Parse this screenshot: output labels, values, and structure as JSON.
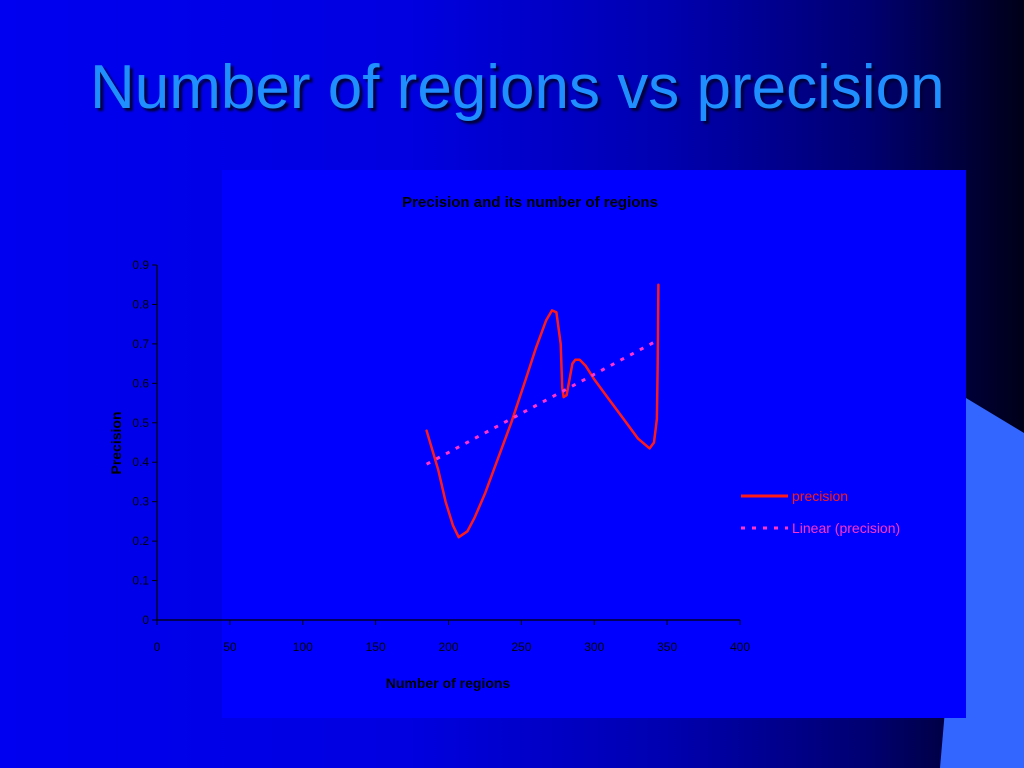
{
  "slide": {
    "title": "Number of regions vs precision"
  },
  "colors": {
    "background_left": "#0000f0",
    "background_right": "#000018",
    "title_text": "#1f8fff",
    "chart_area": "#0000ff",
    "accent_shape": "#3366ff",
    "series_line": "#ff1a1a",
    "trendline": "#ff33cc",
    "axis": "#000000"
  },
  "chart_data": {
    "type": "line",
    "title": "Precision and its number of regions",
    "xlabel": "Number of regions",
    "ylabel": "Precision",
    "xlim": [
      0,
      400
    ],
    "ylim": [
      0,
      0.9
    ],
    "x_ticks": [
      "0",
      "50",
      "100",
      "150",
      "200",
      "250",
      "300",
      "350",
      "400"
    ],
    "y_ticks": [
      "0",
      "0.1",
      "0.2",
      "0.3",
      "0.4",
      "0.5",
      "0.6",
      "0.7",
      "0.8",
      "0.9"
    ],
    "grid": false,
    "legend_position": "right",
    "series": [
      {
        "name": "precision",
        "style": "solid",
        "color": "#ff1a1a",
        "x": [
          185,
          193,
          198,
          203,
          207,
          213,
          218,
          225,
          233,
          243,
          253,
          260,
          267,
          271,
          274,
          277,
          278,
          279,
          281,
          283,
          285,
          287,
          290,
          294,
          300,
          310,
          320,
          330,
          338,
          341,
          343,
          343.5,
          344
        ],
        "y": [
          0.48,
          0.38,
          0.3,
          0.24,
          0.21,
          0.225,
          0.26,
          0.32,
          0.4,
          0.5,
          0.61,
          0.69,
          0.76,
          0.785,
          0.78,
          0.7,
          0.59,
          0.565,
          0.57,
          0.61,
          0.65,
          0.66,
          0.66,
          0.645,
          0.61,
          0.56,
          0.51,
          0.46,
          0.435,
          0.45,
          0.51,
          0.65,
          0.85
        ]
      },
      {
        "name": "Linear (precision)",
        "style": "dotted",
        "color": "#ff33cc",
        "x": [
          185,
          344
        ],
        "y": [
          0.395,
          0.71
        ]
      }
    ]
  }
}
